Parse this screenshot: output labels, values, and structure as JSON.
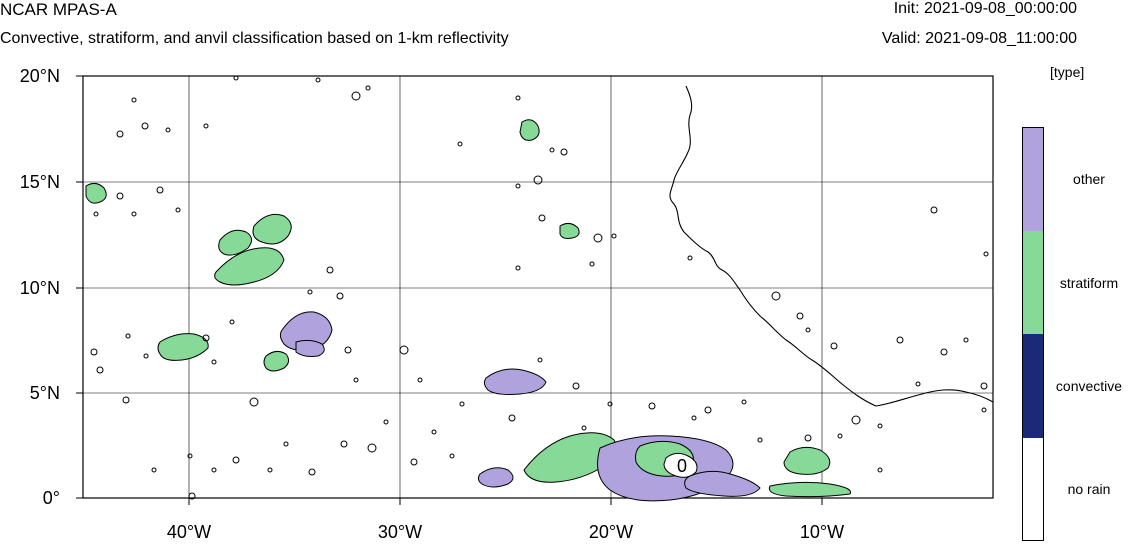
{
  "header": {
    "model": "NCAR MPAS-A",
    "subtitle": "Convective, stratiform, and anvil classification based on 1-km reflectivity",
    "init": "Init: 2021-09-08_00:00:00",
    "valid": "Valid: 2021-09-08_11:00:00"
  },
  "map": {
    "lat_labels": [
      "20°N",
      "15°N",
      "10°N",
      "5°N",
      "0°"
    ],
    "lon_labels": [
      "40°W",
      "30°W",
      "20°W",
      "10°W"
    ],
    "contour_label": "0",
    "lat_range": [
      0,
      20
    ],
    "lon_range": [
      -45,
      -2
    ],
    "grid": true
  },
  "legend": {
    "units": "[type]",
    "classes": [
      {
        "label": "other",
        "color": "#b0a3dd"
      },
      {
        "label": "stratiform",
        "color": "#86d996"
      },
      {
        "label": "convective",
        "color": "#1a2a78"
      },
      {
        "label": "no rain",
        "color": "#ffffff"
      }
    ]
  }
}
